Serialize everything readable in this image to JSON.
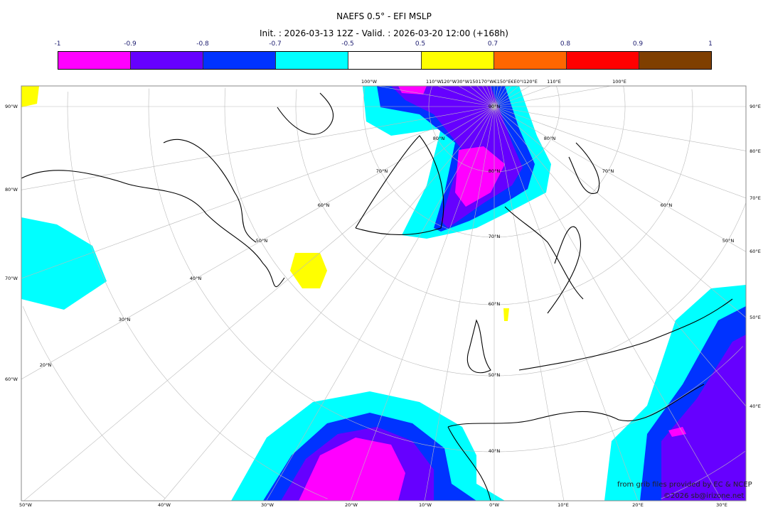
{
  "title": "NAEFS 0.5° - EFI MSLP",
  "subtitle": "Init. : 2026-03-13 12Z - Valid. : 2026-03-20 12:00 (+168h)",
  "colorbar": {
    "ticks": [
      "-1",
      "-0.9",
      "-0.8",
      "-0.7",
      "-0.5",
      "0.5",
      "0.7",
      "0.8",
      "0.9",
      "1"
    ],
    "colors": [
      "#ff00ff",
      "#6600ff",
      "#0033ff",
      "#00ffff",
      "#ffffff",
      "#ffff00",
      "#ff6600",
      "#ff0000",
      "#7f3f00"
    ]
  },
  "map": {
    "left_labels": [
      "90°W",
      "80°W",
      "70°W",
      "60°W"
    ],
    "right_labels": [
      "90°E",
      "80°E",
      "70°E",
      "60°E",
      "50°E",
      "40°E"
    ],
    "bottom_labels": [
      "50°W",
      "40°W",
      "30°W",
      "20°W",
      "10°W",
      "0°W",
      "10°E",
      "20°E",
      "30°E"
    ],
    "top_labels": [
      "100°W",
      "110°W",
      "120°W30°W150170°W€150°E€E0°I120°E",
      "110°E",
      "100°E"
    ],
    "lat_labels": [
      "90°N",
      "80°N",
      "70°N",
      "60°N",
      "50°N",
      "40°N",
      "80°N",
      "80°N",
      "70°N",
      "70°N",
      "60°N",
      "60°N",
      "50°N",
      "50°N",
      "40°N",
      "30°N",
      "20°N"
    ]
  },
  "credits": {
    "source": "from grib files provided by EC & NCEP",
    "copyright": "©2026 sb@irizone.net"
  }
}
